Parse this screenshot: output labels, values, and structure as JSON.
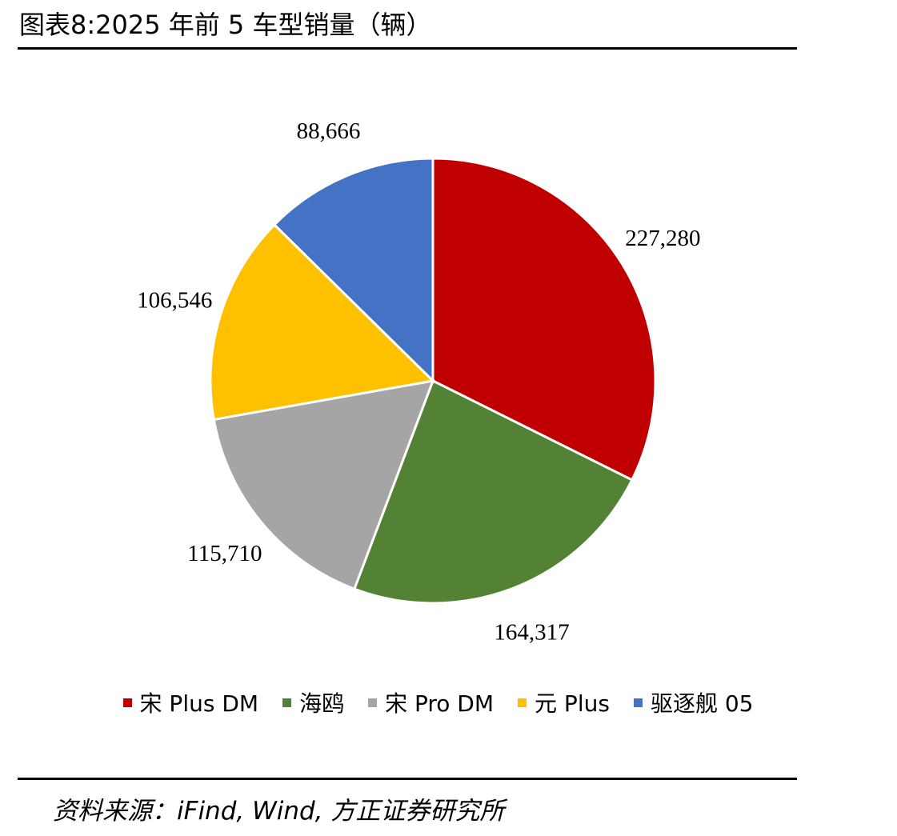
{
  "header": {
    "title": "图表8:2025 年前 5 车型销量（辆）"
  },
  "footer": {
    "source": "资料来源：iFind, Wind, 方正证券研究所"
  },
  "colors": {
    "rule": "#000000",
    "slice_border": "#ffffff"
  },
  "chart_data": {
    "type": "pie",
    "title": "",
    "start_angle_deg": 0,
    "direction": "clockwise",
    "legend_position": "bottom",
    "slices": [
      {
        "name": "宋 Plus DM",
        "value": 227280,
        "label": "227,280",
        "color": "#C00000"
      },
      {
        "name": "海鸥",
        "value": 164317,
        "label": "164,317",
        "color": "#548235"
      },
      {
        "name": "宋 Pro DM",
        "value": 115710,
        "label": "115,710",
        "color": "#A5A5A5"
      },
      {
        "name": "元 Plus",
        "value": 106546,
        "label": "106,546",
        "color": "#FFC000"
      },
      {
        "name": "驱逐舰 05",
        "value": 88666,
        "label": "88,666",
        "color": "#4472C4"
      }
    ]
  }
}
